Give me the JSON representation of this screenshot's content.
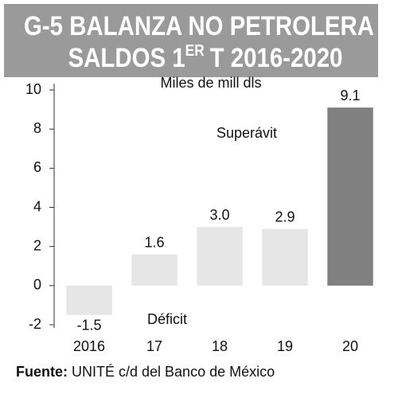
{
  "chart_data": {
    "type": "bar",
    "title_line1": "G-5 BALANZA NO PETROLERA",
    "title_line2": [
      "SALDOS 1",
      "ER",
      "T 2016-2020"
    ],
    "y_label": "Miles de mill dls",
    "annotations": [
      "Superávit",
      "Déficit"
    ],
    "source": [
      "Fuente:",
      "UNITÉ c/d del Banco de México"
    ],
    "categories": [
      "2016",
      "17",
      "18",
      "19",
      "20"
    ],
    "values": [
      -1.5,
      1.6,
      3.0,
      2.9,
      9.1
    ],
    "value_labels": [
      "-1.5",
      "1.6",
      "3.0",
      "2.9",
      "9.1"
    ],
    "colors": [
      "#e6e6e6",
      "#e6e6e6",
      "#e6e6e6",
      "#e6e6e6",
      "#808080"
    ],
    "ylim": [
      -2,
      10
    ],
    "yticks": [
      -2,
      0,
      2,
      4,
      6,
      8,
      10
    ]
  }
}
